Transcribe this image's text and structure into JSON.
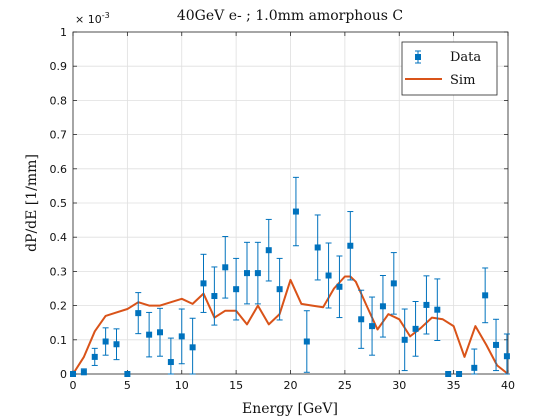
{
  "chart_data": {
    "type": "scatter",
    "title": "40GeV e- ; 1.0mm amorphous C",
    "xlabel": "Energy [GeV]",
    "ylabel": "dP/dE [1/mm]",
    "exponent_label": "× 10",
    "exponent_power": "-3",
    "xlim": [
      0,
      40
    ],
    "ylim": [
      0,
      1
    ],
    "xticks": [
      "0",
      "5",
      "10",
      "15",
      "20",
      "25",
      "30",
      "35",
      "40"
    ],
    "yticks": [
      "0",
      "0.1",
      "0.2",
      "0.3",
      "0.4",
      "0.5",
      "0.6",
      "0.7",
      "0.8",
      "0.9",
      "1"
    ],
    "grid": true,
    "legend_position": "top-right",
    "colors": {
      "data": "#0072bd",
      "sim": "#d95319"
    },
    "series": [
      {
        "name": "Data",
        "kind": "errorbar",
        "x": [
          0.0,
          1.0,
          2.0,
          3.0,
          4.0,
          5.0,
          6.0,
          7.0,
          8.0,
          9.0,
          10.0,
          11.0,
          12.0,
          13.0,
          14.0,
          15.0,
          16.0,
          17.0,
          18.0,
          19.0,
          20.5,
          21.5,
          22.5,
          23.5,
          24.5,
          25.5,
          26.5,
          27.5,
          28.5,
          29.5,
          30.5,
          31.5,
          32.5,
          33.5,
          34.5,
          35.5,
          36.9,
          37.9,
          38.9,
          39.9
        ],
        "y": [
          0.0,
          0.005,
          0.05,
          0.095,
          0.087,
          0.0,
          0.178,
          0.115,
          0.122,
          0.035,
          0.11,
          0.078,
          0.265,
          0.228,
          0.312,
          0.248,
          0.295,
          0.295,
          0.362,
          0.248,
          0.475,
          0.095,
          0.37,
          0.288,
          0.255,
          0.375,
          0.16,
          0.14,
          0.198,
          0.265,
          0.1,
          0.132,
          0.202,
          0.188,
          0.0,
          0.0,
          0.018,
          0.23,
          0.085,
          0.052
        ],
        "err": [
          0.0,
          0.01,
          0.025,
          0.04,
          0.045,
          0.0,
          0.06,
          0.065,
          0.07,
          0.07,
          0.08,
          0.085,
          0.085,
          0.085,
          0.09,
          0.09,
          0.09,
          0.09,
          0.09,
          0.09,
          0.1,
          0.09,
          0.095,
          0.095,
          0.09,
          0.1,
          0.085,
          0.085,
          0.09,
          0.09,
          0.09,
          0.08,
          0.085,
          0.09,
          0.0,
          0.0,
          0.055,
          0.08,
          0.075,
          0.065
        ]
      },
      {
        "name": "Sim",
        "kind": "line",
        "x": [
          0,
          1,
          2,
          3,
          4,
          5,
          6,
          7,
          8,
          9,
          10,
          11,
          12,
          13,
          14,
          15,
          16,
          17,
          18,
          19,
          20,
          21,
          22,
          23,
          24,
          25,
          25.5,
          26,
          27,
          28,
          29,
          30,
          31,
          32,
          33,
          34,
          35,
          36,
          37,
          38,
          39,
          40
        ],
        "y": [
          0.0,
          0.05,
          0.125,
          0.17,
          0.18,
          0.19,
          0.21,
          0.2,
          0.2,
          0.21,
          0.22,
          0.205,
          0.235,
          0.165,
          0.185,
          0.185,
          0.145,
          0.2,
          0.145,
          0.175,
          0.275,
          0.205,
          0.2,
          0.195,
          0.25,
          0.285,
          0.285,
          0.27,
          0.2,
          0.13,
          0.175,
          0.16,
          0.11,
          0.135,
          0.165,
          0.16,
          0.14,
          0.05,
          0.14,
          0.085,
          0.025,
          0.0
        ]
      }
    ]
  }
}
